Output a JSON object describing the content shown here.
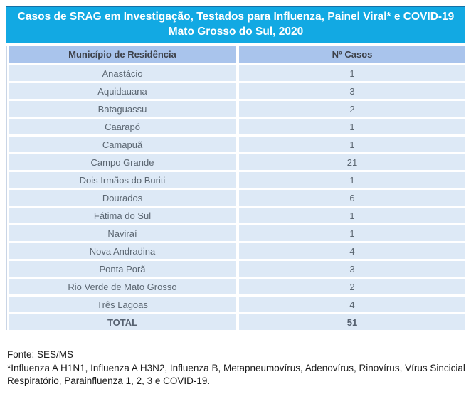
{
  "title": {
    "line1": "Casos de SRAG em Investigação, Testados para Influenza, Painel Viral* e COVID-19",
    "line2": "Mato Grosso do Sul, 2020"
  },
  "table": {
    "columns": {
      "municipio": "Município de Residência",
      "casos": "Nº Casos"
    },
    "rows": [
      {
        "municipio": "Anastácio",
        "casos": "1"
      },
      {
        "municipio": "Aquidauana",
        "casos": "3"
      },
      {
        "municipio": "Bataguassu",
        "casos": "2"
      },
      {
        "municipio": "Caarapó",
        "casos": "1"
      },
      {
        "municipio": "Camapuã",
        "casos": "1"
      },
      {
        "municipio": "Campo Grande",
        "casos": "21"
      },
      {
        "municipio": "Dois Irmãos do Buriti",
        "casos": "1"
      },
      {
        "municipio": "Dourados",
        "casos": "6"
      },
      {
        "municipio": "Fátima do Sul",
        "casos": "1"
      },
      {
        "municipio": "Naviraí",
        "casos": "1"
      },
      {
        "municipio": "Nova Andradina",
        "casos": "4"
      },
      {
        "municipio": "Ponta Porã",
        "casos": "3"
      },
      {
        "municipio": "Rio Verde de Mato Grosso",
        "casos": "2"
      },
      {
        "municipio": "Três Lagoas",
        "casos": "4"
      }
    ],
    "total": {
      "label": "TOTAL",
      "casos": "51"
    }
  },
  "footer": {
    "source": "Fonte: SES/MS",
    "note": "*Influenza A H1N1, Influenza A H3N2, Influenza B, Metapneumovírus, Adenovírus, Rinovírus, Vírus Sincicial Respiratório, Parainfluenza 1, 2, 3 e COVID-19."
  },
  "colors": {
    "title_background": "#12a9e3",
    "title_top_border": "#1470a6",
    "title_text": "#ffffff",
    "header_background": "#a9c4ec",
    "header_text": "#3d4149",
    "row_background": "#dde9f6",
    "row_text": "#5b6671",
    "footer_text": "#1a1a1a"
  },
  "chart_data": {
    "type": "table",
    "title": "Casos de SRAG em Investigação, Testados para Influenza, Painel Viral* e COVID-19 — Mato Grosso do Sul, 2020",
    "columns": [
      "Município de Residência",
      "Nº Casos"
    ],
    "categories": [
      "Anastácio",
      "Aquidauana",
      "Bataguassu",
      "Caarapó",
      "Camapuã",
      "Campo Grande",
      "Dois Irmãos do Buriti",
      "Dourados",
      "Fátima do Sul",
      "Naviraí",
      "Nova Andradina",
      "Ponta Porã",
      "Rio Verde de Mato Grosso",
      "Três Lagoas"
    ],
    "values": [
      1,
      3,
      2,
      1,
      1,
      21,
      1,
      6,
      1,
      1,
      4,
      3,
      2,
      4
    ],
    "total": 51,
    "source": "Fonte: SES/MS",
    "footnote": "*Influenza A H1N1, Influenza A H3N2, Influenza B, Metapneumovírus, Adenovírus, Rinovírus, Vírus Sincicial Respiratório, Parainfluenza 1, 2, 3 e COVID-19."
  }
}
